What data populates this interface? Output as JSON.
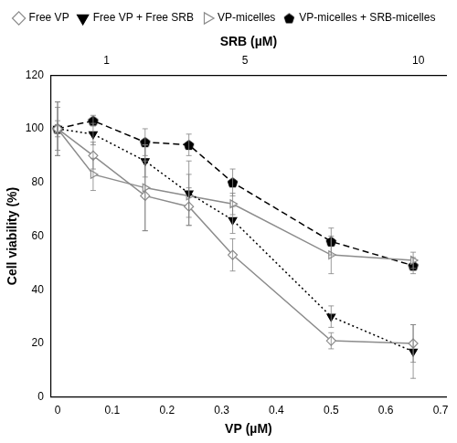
{
  "chart_data": {
    "type": "line",
    "x_label": "VP (µM)",
    "x2_label": "SRB (µM)",
    "y_label": "Cell viability (%)",
    "x": [
      0,
      0.065,
      0.16,
      0.24,
      0.32,
      0.5,
      0.65
    ],
    "xlim": [
      -0.012,
      0.71
    ],
    "xticks": [
      0,
      0.1,
      0.2,
      0.3,
      0.4,
      0.5,
      0.6,
      0.7
    ],
    "x2lim": [
      -0.6,
      10.8
    ],
    "x2ticks": [
      1,
      5,
      10
    ],
    "ylim": [
      0,
      120
    ],
    "yticks": [
      0,
      20,
      40,
      60,
      80,
      100,
      120
    ],
    "grid": false,
    "legend": "top",
    "series": [
      {
        "name": "Free VP",
        "color": "#8c8c8c",
        "marker": "diamond-open",
        "line_style": "solid",
        "values": [
          100,
          90,
          75,
          71,
          53,
          21,
          20
        ],
        "errors": [
          10,
          5,
          13,
          7,
          6,
          3,
          7
        ]
      },
      {
        "name": "Free VP + Free SRB",
        "color": "#000000",
        "marker": "triangle-down",
        "line_style": "dotted",
        "values": [
          100,
          98,
          88,
          76,
          66,
          30,
          17
        ],
        "errors": [
          8,
          4,
          6,
          12,
          5,
          4,
          10
        ]
      },
      {
        "name": "VP-micelles",
        "color": "#8c8c8c",
        "marker": "triangle-right-open",
        "line_style": "solid",
        "values": [
          100,
          83,
          78,
          75,
          72,
          53,
          51
        ],
        "errors": [
          10,
          6,
          16,
          8,
          4,
          7,
          3
        ]
      },
      {
        "name": "VP-micelles + SRB-micelles",
        "color": "#000000",
        "marker": "pentagon",
        "line_style": "dashed",
        "values": [
          100,
          103,
          95,
          94,
          80,
          58,
          49
        ],
        "errors": [
          3,
          2,
          5,
          4,
          5,
          5,
          3
        ]
      }
    ]
  }
}
